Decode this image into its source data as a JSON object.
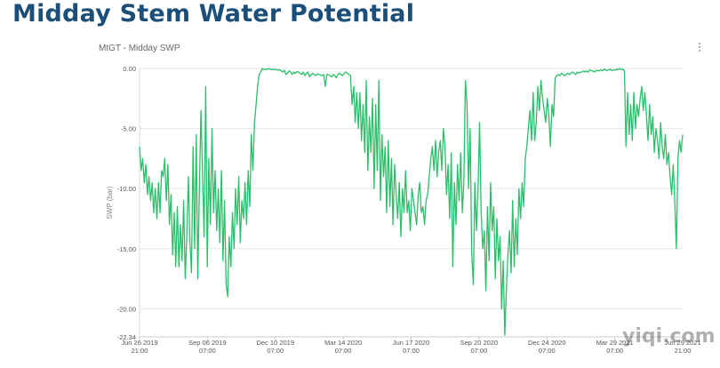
{
  "page": {
    "title": "Midday Stem Water Potential",
    "watermark": "yiqi.com"
  },
  "colors": {
    "title": "#1b4f7a",
    "series": "#2bbf6a",
    "grid": "#e6e6e6"
  },
  "chart_data": {
    "type": "line",
    "title": "MtGT - Midday SWP",
    "xlabel": "",
    "ylabel": "SWP (bar)",
    "ylim": [
      -22.34,
      0
    ],
    "yticks": [
      {
        "value": 0,
        "label": "0.00"
      },
      {
        "value": -5,
        "label": "-5.00"
      },
      {
        "value": -10,
        "label": "-10.00"
      },
      {
        "value": -15,
        "label": "-15.00"
      },
      {
        "value": -20,
        "label": "-20.00"
      },
      {
        "value": -22.34,
        "label": "-22.34"
      }
    ],
    "xticks": [
      {
        "line1": "Jun 26 2019",
        "line2": "21:00"
      },
      {
        "line1": "Sep 06 2019",
        "line2": "07:00"
      },
      {
        "line1": "Dec 10 2019",
        "line2": "07:00"
      },
      {
        "line1": "Mar 14 2020",
        "line2": "07:00"
      },
      {
        "line1": "Jun 17 2020",
        "line2": "07:00"
      },
      {
        "line1": "Sep 20 2020",
        "line2": "07:00"
      },
      {
        "line1": "Dec 24 2020",
        "line2": "07:00"
      },
      {
        "line1": "Mar 29 2021",
        "line2": "07:00"
      },
      {
        "line1": "Jun 29 2021",
        "line2": "21:00"
      }
    ],
    "grid": true,
    "legend": "none",
    "series": [
      {
        "values": [
          -6.5,
          -8.5,
          -7.5,
          -9.5,
          -8.0,
          -10.5,
          -9.0,
          -11.0,
          -9.5,
          -12.0,
          -10.0,
          -12.5,
          -9.5,
          -12.0,
          -8.5,
          -9.0,
          -7.5,
          -11.0,
          -8.0,
          -13.0,
          -10.5,
          -15.5,
          -12.0,
          -16.5,
          -11.5,
          -16.5,
          -13.0,
          -16.0,
          -11.0,
          -17.5,
          -14.0,
          -9.0,
          -14.5,
          -17.0,
          -6.5,
          -15.0,
          -5.5,
          -17.5,
          -10.0,
          -3.5,
          -8.5,
          -14.0,
          -1.5,
          -16.5,
          -7.5,
          -13.0,
          -5.0,
          -12.0,
          -8.5,
          -13.5,
          -10.0,
          -14.5,
          -8.5,
          -16.0,
          -11.0,
          -18.0,
          -19.0,
          -14.0,
          -16.5,
          -12.0,
          -15.0,
          -10.0,
          -13.0,
          -9.0,
          -14.5,
          -11.0,
          -12.5,
          -9.5,
          -13.0,
          -8.5,
          -11.5,
          -5.5,
          -8.5,
          -4.5,
          -3.0,
          -1.5,
          -0.5,
          -0.3,
          0.0,
          -0.1,
          -0.05,
          -0.1,
          0.0,
          -0.05,
          -0.1,
          -0.08,
          -0.1,
          -0.1,
          -0.15,
          -0.1,
          -0.2,
          -0.3,
          -0.15,
          -0.5,
          -0.4,
          -0.2,
          -0.3,
          -0.5,
          -0.3,
          -0.4,
          -0.25,
          -0.3,
          -0.4,
          -0.5,
          -0.3,
          -0.6,
          -0.4,
          -0.3,
          -0.7,
          -0.5,
          -0.4,
          -0.5,
          -0.6,
          -0.45,
          -0.5,
          -0.55,
          -0.6,
          -0.5,
          -1.5,
          -0.5,
          -0.5,
          -0.6,
          -0.7,
          -0.5,
          -0.6,
          -0.8,
          -0.5,
          -0.4,
          -0.5,
          -0.6,
          -0.4,
          -0.3,
          -0.4,
          -0.5,
          -0.6,
          -3.0,
          -1.5,
          -4.5,
          -2.0,
          -5.0,
          -2.0,
          -6.0,
          -3.0,
          -7.0,
          -1.0,
          -8.5,
          -4.0,
          -7.0,
          -2.5,
          -10.0,
          -3.0,
          -8.5,
          -1.0,
          -11.0,
          -5.5,
          -9.0,
          -6.5,
          -12.0,
          -6.0,
          -11.5,
          -7.5,
          -13.0,
          -8.0,
          -10.5,
          -12.5,
          -9.5,
          -14.0,
          -10.0,
          -12.0,
          -8.5,
          -12.0,
          -11.0,
          -13.5,
          -10.0,
          -11.0,
          -12.0,
          -13.0,
          -10.5,
          -9.5,
          -12.0,
          -11.5,
          -13.0,
          -11.0,
          -10.5,
          -9.0,
          -7.5,
          -6.5,
          -8.5,
          -6.0,
          -9.0,
          -7.0,
          -6.0,
          -8.5,
          -5.0,
          -6.5,
          -10.5,
          -8.0,
          -12.5,
          -7.0,
          -16.5,
          -9.5,
          -13.0,
          -8.0,
          -11.0,
          -7.0,
          -12.0,
          -9.5,
          -1.0,
          -3.0,
          -10.0,
          -5.0,
          -15.5,
          -18.0,
          -9.5,
          -13.5,
          -10.0,
          -4.5,
          -12.0,
          -15.0,
          -13.5,
          -18.5,
          -11.5,
          -16.0,
          -9.5,
          -13.5,
          -11.5,
          -17.5,
          -12.5,
          -16.0,
          -14.0,
          -20.0,
          -16.0,
          -22.2,
          -18.5,
          -15.5,
          -13.5,
          -17.0,
          -11.0,
          -16.5,
          -12.5,
          -15.5,
          -10.0,
          -12.5,
          -9.5,
          -11.5,
          -7.5,
          -6.5,
          -5.0,
          -3.5,
          -6.0,
          -2.0,
          -6.0,
          -4.5,
          -1.5,
          -3.5,
          -1.0,
          -2.5,
          -3.5,
          -4.5,
          -2.5,
          -4.0,
          -6.5,
          -3.0,
          -4.0,
          -0.8,
          -0.6,
          -0.5,
          -0.6,
          -0.4,
          -0.5,
          -0.6,
          -0.5,
          -0.4,
          -0.5,
          -0.4,
          -0.3,
          -0.4,
          -0.5,
          -0.3,
          -0.4,
          -0.3,
          -0.3,
          -0.2,
          -0.3,
          -0.2,
          -0.3,
          -0.1,
          -0.2,
          -0.2,
          -0.3,
          -0.15,
          -0.2,
          -0.2,
          -0.1,
          -0.2,
          -0.05,
          -0.1,
          -0.2,
          -0.1,
          -0.05,
          -0.2,
          -0.1,
          -0.15,
          -0.05,
          -0.1,
          -0.0,
          -0.1,
          -0.05,
          -0.2,
          -6.5,
          -2.0,
          -5.5,
          -3.0,
          -6.0,
          -2.0,
          -5.0,
          -3.0,
          -4.0,
          -2.5,
          -1.5,
          -3.5,
          -2.0,
          -4.0,
          -6.0,
          -3.0,
          -5.5,
          -4.0,
          -7.0,
          -5.0,
          -6.0,
          -7.5,
          -4.5,
          -6.5,
          -7.5,
          -5.5,
          -8.0,
          -7.0,
          -9.0,
          -10.5,
          -8.0,
          -11.0,
          -15.0,
          -7.5,
          -6.0,
          -7.0,
          -5.5
        ]
      }
    ]
  }
}
